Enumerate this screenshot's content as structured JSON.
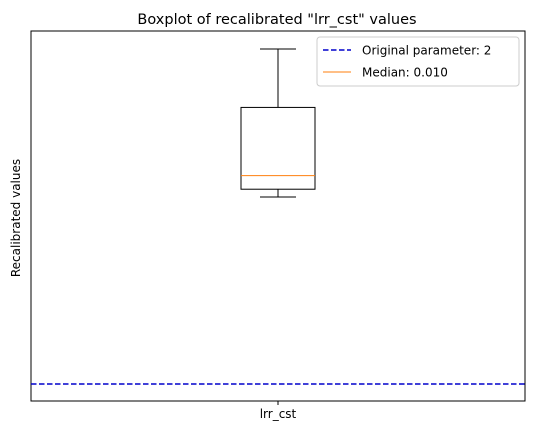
{
  "chart_data": {
    "type": "box",
    "title": "Boxplot of recalibrated \"lrr_cst\" values",
    "xlabel": "",
    "ylabel": "Recalibrated values",
    "categories": [
      "lrr_cst"
    ],
    "box": {
      "whisker_low": 0.0045,
      "q1": 0.0065,
      "median": 0.01,
      "q3": 0.0275,
      "whisker_high": 0.0425
    },
    "reference_line": {
      "value": 2,
      "style": "dashed",
      "color": "#0000cc"
    },
    "ylim": null,
    "y_ticks_visible": false,
    "grid": false,
    "legend": {
      "position": "top-right",
      "entries": [
        {
          "label": "Original parameter: 2",
          "color": "#0000cc",
          "style": "dashed"
        },
        {
          "label": "Median: 0.010",
          "color": "#ff7f0e",
          "style": "solid"
        }
      ]
    },
    "colors": {
      "box": "#000000",
      "median": "#ff7f0e",
      "reference": "#0000cc"
    }
  }
}
